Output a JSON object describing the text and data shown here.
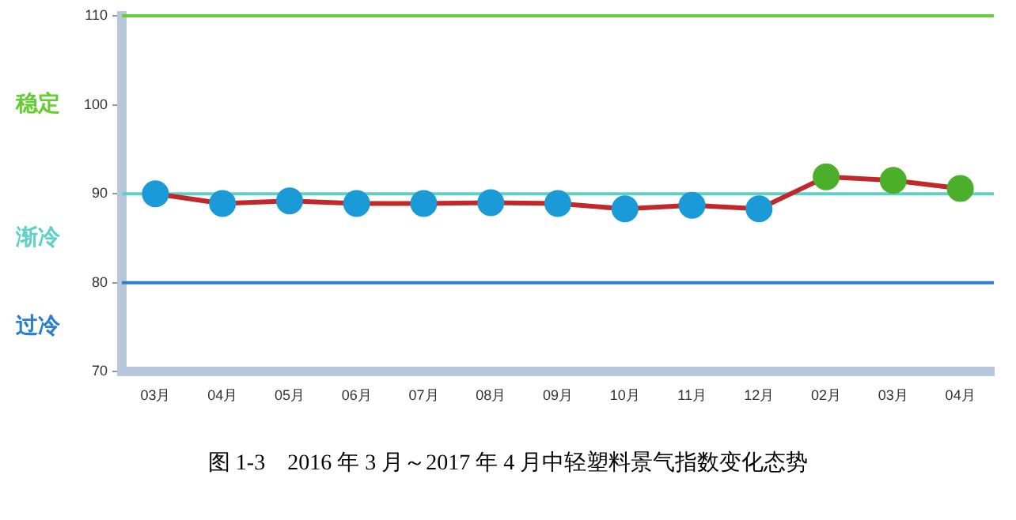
{
  "chart_data": {
    "type": "line",
    "title": "图 1-3　2016 年 3 月～2017 年 4 月中轻塑料景气指数变化态势",
    "categories": [
      "03月",
      "04月",
      "05月",
      "06月",
      "07月",
      "08月",
      "09月",
      "10月",
      "11月",
      "12月",
      "02月",
      "03月",
      "04月"
    ],
    "series": [
      {
        "color": "#c0282a",
        "colors": [
          "#1a9ad6",
          "#1a9ad6",
          "#1a9ad6",
          "#1a9ad6",
          "#1a9ad6",
          "#1a9ad6",
          "#1a9ad6",
          "#1a9ad6",
          "#1a9ad6",
          "#1a9ad6",
          "#4caf2a",
          "#4caf2a",
          "#4caf2a"
        ],
        "values": [
          90,
          88.9,
          89.2,
          88.9,
          88.9,
          89,
          88.9,
          88.3,
          88.7,
          88.3,
          91.9,
          91.5,
          90.6
        ]
      }
    ],
    "ylim": [
      70,
      110
    ],
    "yticks": [
      70,
      80,
      90,
      100,
      110
    ],
    "grid": false,
    "legend": false,
    "marker": "circle",
    "line_style": "solid",
    "ref_lines": [
      {
        "axis": "y",
        "value": 110,
        "color": "#66cc33"
      },
      {
        "axis": "y",
        "value": 90,
        "color": "#5fd0c8"
      },
      {
        "axis": "y",
        "value": 80,
        "color": "#2a7fd0"
      }
    ],
    "annotations": [
      "稳定",
      "渐冷",
      "过冷"
    ]
  }
}
